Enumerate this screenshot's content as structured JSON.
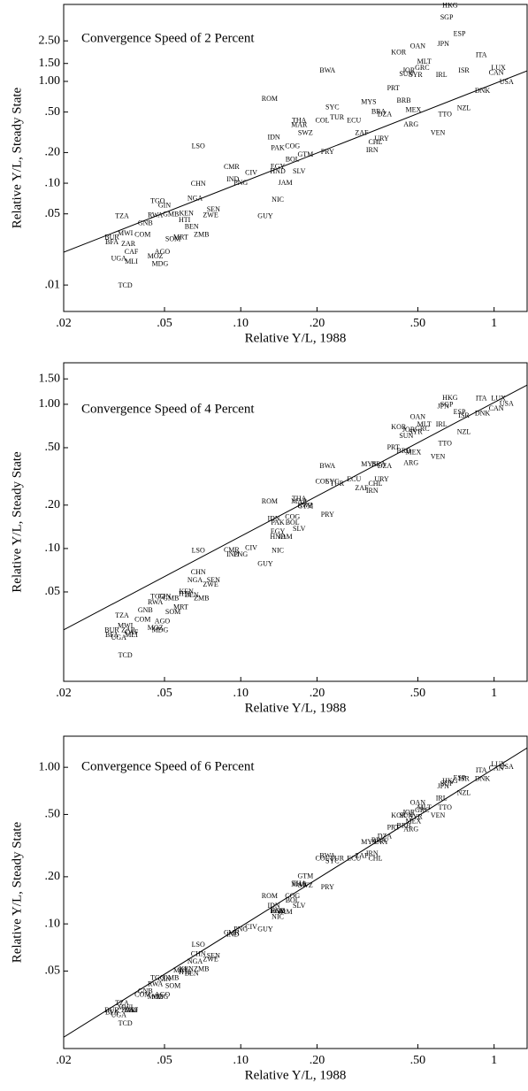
{
  "chart_data": [
    {
      "type": "scatter",
      "title": "Convergence Speed of 2 Percent",
      "x_label": "Relative Y/L, 1988",
      "y_label": "Relative Y/L, Steady State",
      "log_x": true,
      "log_y": true,
      "color": "#000000",
      "xlim": [
        0.02,
        1.35
      ],
      "ylim": [
        0.0055,
        5.7
      ],
      "xticks": [
        {
          "value": 0.02,
          "label": ".02"
        },
        {
          "value": 0.05,
          "label": ".05"
        },
        {
          "value": 0.1,
          "label": ".10"
        },
        {
          "value": 0.2,
          "label": ".20"
        },
        {
          "value": 0.5,
          "label": ".50"
        },
        1
      ],
      "yticks": [
        {
          "value": 2.5,
          "label": "2.50"
        },
        {
          "value": 1.5,
          "label": "1.50"
        },
        {
          "value": 1,
          "label": "1.00"
        },
        {
          "value": 0.5,
          "label": ".50"
        },
        {
          "value": 0.2,
          "label": ".20"
        },
        {
          "value": 0.1,
          "label": ".10"
        },
        {
          "value": 0.05,
          "label": ".05"
        },
        {
          "value": 0.01,
          "label": ".01"
        }
      ],
      "fit_line": {
        "x": [
          0.02,
          1.35
        ],
        "y": [
          0.021,
          1.27
        ]
      },
      "labels": [
        "HKG",
        "SGP",
        "JPN",
        "OAN",
        "KOR",
        "ESP",
        "ITA",
        "MLT",
        "GRC",
        "JOR",
        "SUN",
        "SYR",
        "IRL",
        "ISR",
        "LUX",
        "CAN",
        "USA",
        "DNK",
        "NZL",
        "BWA",
        "ROM",
        "PRT",
        "MYS",
        "BRB",
        "MEX",
        "TTO",
        "ARG",
        "VEN",
        "SYC",
        "BRA",
        "DZA",
        "TUR",
        "THA",
        "COL",
        "ECU",
        "MAR",
        "SWZ",
        "ZAF",
        "URY",
        "IRN",
        "CHL",
        "PRY",
        "GTM",
        "IDN",
        "PAK",
        "COG",
        "BOL",
        "HND",
        "SLV",
        "EGY",
        "JAM",
        "CMR",
        "CIV",
        "IND",
        "PNG",
        "CHN",
        "LSO",
        "NIC",
        "GUY",
        "NGA",
        "SEN",
        "ZWE",
        "KEN",
        "HTI",
        "BEN",
        "TGO",
        "GIN",
        "GMB",
        "RWA",
        "GNB",
        "TZA",
        "ZMB",
        "MRT",
        "SOM",
        "MWI",
        "COM",
        "BFA",
        "TCD",
        "MDG",
        "MLI",
        "MOZ",
        "AGO",
        "CAF",
        "UGA",
        "BUR",
        "ZAR"
      ],
      "x": [
        0.67,
        0.65,
        0.63,
        0.5,
        0.42,
        0.73,
        0.89,
        0.53,
        0.52,
        0.46,
        0.45,
        0.49,
        0.62,
        0.76,
        1.04,
        1.02,
        1.12,
        0.9,
        0.76,
        0.22,
        0.13,
        0.4,
        0.32,
        0.44,
        0.48,
        0.64,
        0.47,
        0.6,
        0.23,
        0.35,
        0.37,
        0.24,
        0.17,
        0.21,
        0.28,
        0.17,
        0.18,
        0.3,
        0.36,
        0.33,
        0.34,
        0.22,
        0.18,
        0.135,
        0.14,
        0.16,
        0.16,
        0.14,
        0.17,
        0.14,
        0.15,
        0.092,
        0.11,
        0.093,
        0.1,
        0.068,
        0.068,
        0.14,
        0.125,
        0.066,
        0.078,
        0.076,
        0.061,
        0.06,
        0.064,
        0.047,
        0.05,
        0.053,
        0.046,
        0.042,
        0.034,
        0.07,
        0.058,
        0.054,
        0.035,
        0.041,
        0.031,
        0.035,
        0.048,
        0.037,
        0.046,
        0.049,
        0.037,
        0.033,
        0.031,
        0.036
      ],
      "values": [
        5.5,
        4.2,
        2.3,
        2.2,
        1.9,
        2.9,
        1.8,
        1.55,
        1.35,
        1.27,
        1.17,
        1.15,
        1.15,
        1.27,
        1.35,
        1.2,
        0.98,
        0.8,
        0.54,
        1.27,
        0.67,
        0.85,
        0.62,
        0.64,
        0.52,
        0.47,
        0.375,
        0.31,
        0.55,
        0.5,
        0.47,
        0.44,
        0.41,
        0.41,
        0.41,
        0.37,
        0.31,
        0.31,
        0.27,
        0.21,
        0.25,
        0.2,
        0.19,
        0.28,
        0.22,
        0.23,
        0.17,
        0.13,
        0.13,
        0.145,
        0.1,
        0.143,
        0.125,
        0.108,
        0.1,
        0.098,
        0.23,
        0.068,
        0.047,
        0.07,
        0.055,
        0.048,
        0.05,
        0.043,
        0.037,
        0.066,
        0.06,
        0.049,
        0.048,
        0.04,
        0.047,
        0.031,
        0.029,
        0.028,
        0.032,
        0.031,
        0.026,
        0.0098,
        0.016,
        0.0168,
        0.019,
        0.021,
        0.021,
        0.018,
        0.029,
        0.025
      ]
    },
    {
      "type": "scatter",
      "title": "Convergence Speed of 4 Percent",
      "x_label": "Relative Y/L, 1988",
      "y_label": "Relative Y/L, Steady State",
      "log_x": true,
      "log_y": true,
      "color": "#000000",
      "xlim": [
        0.02,
        1.35
      ],
      "ylim": [
        0.012,
        1.94
      ],
      "xticks": [
        {
          "value": 0.02,
          "label": ".02"
        },
        {
          "value": 0.05,
          "label": ".05"
        },
        {
          "value": 0.1,
          "label": ".10"
        },
        {
          "value": 0.2,
          "label": ".20"
        },
        {
          "value": 0.5,
          "label": ".50"
        },
        1
      ],
      "yticks": [
        {
          "value": 1.5,
          "label": "1.50"
        },
        {
          "value": 1,
          "label": "1.00"
        },
        {
          "value": 0.5,
          "label": ".50"
        },
        {
          "value": 0.2,
          "label": ".20"
        },
        {
          "value": 0.1,
          "label": ".10"
        },
        {
          "value": 0.05,
          "label": ".05"
        }
      ],
      "fit_line": {
        "x": [
          0.02,
          1.35
        ],
        "y": [
          0.0273,
          1.36
        ]
      },
      "labels": [
        "HKG",
        "SGP",
        "JPN",
        "OAN",
        "KOR",
        "ESP",
        "ITA",
        "MLT",
        "GRC",
        "JOR",
        "SUN",
        "SYR",
        "IRL",
        "ISR",
        "LUX",
        "CAN",
        "USA",
        "DNK",
        "NZL",
        "BWA",
        "ROM",
        "PRT",
        "MYS",
        "BRB",
        "MEX",
        "TTO",
        "ARG",
        "VEN",
        "SYC",
        "BRA",
        "DZA",
        "TUR",
        "THA",
        "COL",
        "ECU",
        "MAR",
        "SWZ",
        "ZAF",
        "URY",
        "IRN",
        "CHL",
        "PRY",
        "GTM",
        "IDN",
        "PAK",
        "COG",
        "BOL",
        "HND",
        "SLV",
        "EGY",
        "JAM",
        "CMR",
        "CIV",
        "IND",
        "PNG",
        "CHN",
        "LSO",
        "NIC",
        "GUY",
        "NGA",
        "SEN",
        "ZWE",
        "KEN",
        "HTI",
        "BEN",
        "TGO",
        "GIN",
        "GMB",
        "RWA",
        "GNB",
        "TZA",
        "ZMB",
        "MRT",
        "SOM",
        "MWI",
        "COM",
        "BFA",
        "TCD",
        "MDG",
        "MLI",
        "MOZ",
        "AGO",
        "CAF",
        "UGA",
        "BUR",
        "ZAR"
      ],
      "x": [
        0.67,
        0.65,
        0.63,
        0.5,
        0.42,
        0.73,
        0.89,
        0.53,
        0.52,
        0.46,
        0.45,
        0.49,
        0.62,
        0.76,
        1.04,
        1.02,
        1.12,
        0.9,
        0.76,
        0.22,
        0.13,
        0.4,
        0.32,
        0.44,
        0.48,
        0.64,
        0.47,
        0.6,
        0.23,
        0.35,
        0.37,
        0.24,
        0.17,
        0.21,
        0.28,
        0.17,
        0.18,
        0.3,
        0.36,
        0.33,
        0.34,
        0.22,
        0.18,
        0.135,
        0.14,
        0.16,
        0.16,
        0.14,
        0.17,
        0.14,
        0.15,
        0.092,
        0.11,
        0.093,
        0.1,
        0.068,
        0.068,
        0.14,
        0.125,
        0.066,
        0.078,
        0.076,
        0.061,
        0.06,
        0.064,
        0.047,
        0.05,
        0.053,
        0.046,
        0.042,
        0.034,
        0.07,
        0.058,
        0.054,
        0.035,
        0.041,
        0.031,
        0.035,
        0.048,
        0.037,
        0.046,
        0.049,
        0.037,
        0.033,
        0.031,
        0.036
      ],
      "values": [
        1.1,
        0.99,
        0.96,
        0.81,
        0.69,
        0.88,
        1.09,
        0.72,
        0.67,
        0.66,
        0.6,
        0.64,
        0.72,
        0.83,
        1.09,
        0.93,
        1.0,
        0.86,
        0.64,
        0.37,
        0.21,
        0.5,
        0.38,
        0.47,
        0.46,
        0.53,
        0.39,
        0.43,
        0.29,
        0.38,
        0.37,
        0.28,
        0.22,
        0.29,
        0.3,
        0.21,
        0.197,
        0.26,
        0.3,
        0.25,
        0.28,
        0.17,
        0.195,
        0.16,
        0.15,
        0.165,
        0.15,
        0.12,
        0.136,
        0.13,
        0.12,
        0.097,
        0.1,
        0.09,
        0.09,
        0.068,
        0.096,
        0.096,
        0.078,
        0.06,
        0.06,
        0.056,
        0.05,
        0.048,
        0.047,
        0.046,
        0.046,
        0.045,
        0.042,
        0.037,
        0.034,
        0.045,
        0.039,
        0.036,
        0.029,
        0.032,
        0.025,
        0.018,
        0.027,
        0.025,
        0.028,
        0.031,
        0.026,
        0.024,
        0.027,
        0.027
      ]
    },
    {
      "type": "scatter",
      "title": "Convergence Speed of 6 Percent",
      "x_label": "Relative Y/L, 1988",
      "y_label": "Relative Y/L, Steady State",
      "log_x": true,
      "log_y": true,
      "color": "#000000",
      "xlim": [
        0.02,
        1.35
      ],
      "ylim": [
        0.016,
        1.58
      ],
      "xticks": [
        {
          "value": 0.02,
          "label": ".02"
        },
        {
          "value": 0.05,
          "label": ".05"
        },
        {
          "value": 0.1,
          "label": ".10"
        },
        {
          "value": 0.2,
          "label": ".20"
        },
        {
          "value": 0.5,
          "label": ".50"
        },
        1
      ],
      "yticks": [
        {
          "value": 1,
          "label": "1.00"
        },
        {
          "value": 0.5,
          "label": ".50"
        },
        {
          "value": 0.2,
          "label": ".20"
        },
        {
          "value": 0.1,
          "label": ".10"
        },
        {
          "value": 0.05,
          "label": ".05"
        }
      ],
      "fit_line": {
        "x": [
          0.02,
          1.35
        ],
        "y": [
          0.0189,
          1.33
        ]
      },
      "labels": [
        "HKG",
        "SGP",
        "JPN",
        "OAN",
        "KOR",
        "ESP",
        "ITA",
        "MLT",
        "GRC",
        "JOR",
        "SUN",
        "SYR",
        "IRL",
        "ISR",
        "LUX",
        "CAN",
        "USA",
        "DNK",
        "NZL",
        "BWA",
        "ROM",
        "PRT",
        "MYS",
        "BRB",
        "MEX",
        "TTO",
        "ARG",
        "VEN",
        "SYC",
        "BRA",
        "DZA",
        "TUR",
        "THA",
        "COL",
        "ECU",
        "MAR",
        "SWZ",
        "ZAF",
        "URY",
        "IRN",
        "CHL",
        "PRY",
        "GTM",
        "IDN",
        "PAK",
        "COG",
        "BOL",
        "HND",
        "SLV",
        "EGY",
        "JAM",
        "CMR",
        "CIV",
        "IND",
        "PNG",
        "CHN",
        "LSO",
        "NIC",
        "GUY",
        "NGA",
        "SEN",
        "ZWE",
        "KEN",
        "HTI",
        "BEN",
        "TGO",
        "GIN",
        "GMB",
        "RWA",
        "GNB",
        "TZA",
        "ZMB",
        "MRT",
        "SOM",
        "MWI",
        "COM",
        "BFA",
        "TCD",
        "MDG",
        "MLI",
        "MOZ",
        "AGO",
        "CAF",
        "UGA",
        "BUR",
        "ZAR"
      ],
      "x": [
        0.67,
        0.65,
        0.63,
        0.5,
        0.42,
        0.73,
        0.89,
        0.53,
        0.52,
        0.46,
        0.45,
        0.49,
        0.62,
        0.76,
        1.04,
        1.02,
        1.12,
        0.9,
        0.76,
        0.22,
        0.13,
        0.4,
        0.32,
        0.44,
        0.48,
        0.64,
        0.47,
        0.6,
        0.23,
        0.35,
        0.37,
        0.24,
        0.17,
        0.21,
        0.28,
        0.17,
        0.18,
        0.3,
        0.36,
        0.33,
        0.34,
        0.22,
        0.18,
        0.135,
        0.14,
        0.16,
        0.16,
        0.14,
        0.17,
        0.14,
        0.15,
        0.092,
        0.11,
        0.093,
        0.1,
        0.068,
        0.068,
        0.14,
        0.125,
        0.066,
        0.078,
        0.076,
        0.061,
        0.06,
        0.064,
        0.047,
        0.05,
        0.053,
        0.046,
        0.042,
        0.034,
        0.07,
        0.058,
        0.054,
        0.035,
        0.041,
        0.031,
        0.035,
        0.048,
        0.037,
        0.046,
        0.049,
        0.037,
        0.033,
        0.031,
        0.036
      ],
      "values": [
        0.81,
        0.78,
        0.75,
        0.59,
        0.49,
        0.85,
        0.95,
        0.55,
        0.53,
        0.51,
        0.49,
        0.48,
        0.63,
        0.84,
        1.04,
        0.98,
        1.0,
        0.84,
        0.68,
        0.27,
        0.15,
        0.41,
        0.33,
        0.42,
        0.45,
        0.55,
        0.4,
        0.49,
        0.25,
        0.34,
        0.36,
        0.26,
        0.18,
        0.26,
        0.26,
        0.177,
        0.175,
        0.27,
        0.33,
        0.28,
        0.26,
        0.17,
        0.2,
        0.13,
        0.12,
        0.15,
        0.14,
        0.12,
        0.13,
        0.12,
        0.118,
        0.087,
        0.095,
        0.085,
        0.092,
        0.064,
        0.073,
        0.11,
        0.092,
        0.057,
        0.062,
        0.059,
        0.051,
        0.049,
        0.048,
        0.045,
        0.044,
        0.045,
        0.041,
        0.037,
        0.031,
        0.051,
        0.05,
        0.04,
        0.029,
        0.035,
        0.027,
        0.023,
        0.034,
        0.028,
        0.034,
        0.035,
        0.028,
        0.026,
        0.028,
        0.028
      ]
    }
  ]
}
